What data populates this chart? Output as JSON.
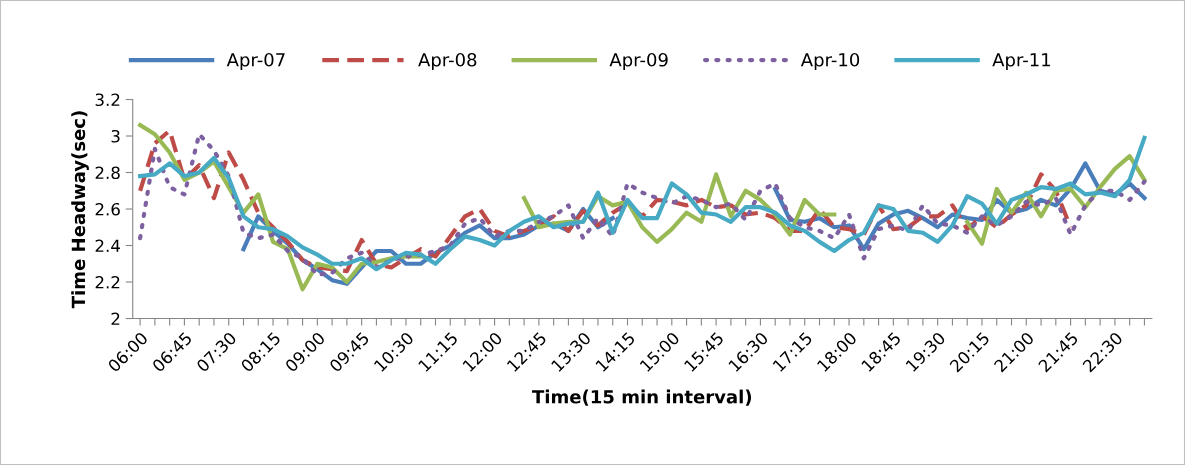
{
  "chart_data": {
    "type": "line",
    "xlabel": "Time(15 min interval)",
    "ylabel": "Time Headway(sec)",
    "categories": [
      "06:00",
      null,
      null,
      "06:45",
      null,
      null,
      "07:30",
      null,
      null,
      "08:15",
      null,
      null,
      "09:00",
      null,
      null,
      "09:45",
      null,
      null,
      "10:30",
      null,
      null,
      "11:15",
      null,
      null,
      "12:00",
      null,
      null,
      "12:45",
      null,
      null,
      "13:30",
      null,
      null,
      "14:15",
      null,
      null,
      "15:00",
      null,
      null,
      "15:45",
      null,
      null,
      "16:30",
      null,
      null,
      "17:15",
      null,
      null,
      "18:00",
      null,
      null,
      "18:45",
      null,
      null,
      "19:30",
      null,
      null,
      "20:15",
      null,
      null,
      "21:00",
      null,
      null,
      "21:45",
      null,
      null,
      "22:30",
      null,
      null
    ],
    "series": [
      {
        "name": "Apr-07",
        "color": "#4a7ebb",
        "line_style": "solid",
        "values": [
          null,
          null,
          null,
          null,
          null,
          null,
          null,
          2.38,
          2.56,
          2.48,
          2.41,
          2.32,
          2.27,
          2.21,
          2.19,
          2.28,
          2.37,
          2.37,
          2.3,
          2.3,
          2.36,
          2.4,
          2.47,
          2.51,
          2.44,
          2.44,
          2.46,
          2.51,
          2.52,
          2.48,
          2.6,
          2.5,
          2.55,
          null,
          null,
          null,
          null,
          null,
          null,
          null,
          null,
          null,
          null,
          2.71,
          2.54,
          2.53,
          2.55,
          2.5,
          2.51,
          2.38,
          2.52,
          2.57,
          2.59,
          2.55,
          2.5,
          2.57,
          2.55,
          2.54,
          2.65,
          2.58,
          2.6,
          2.65,
          2.62,
          2.71,
          2.85,
          2.7,
          2.68,
          2.74,
          2.66
        ]
      },
      {
        "name": "Apr-08",
        "color": "#be4b48",
        "line_style": "dashed",
        "values": [
          2.7,
          2.96,
          3.03,
          2.76,
          2.84,
          2.66,
          2.91,
          2.76,
          2.58,
          2.5,
          2.42,
          2.32,
          2.28,
          2.27,
          2.26,
          2.43,
          2.3,
          2.28,
          2.33,
          2.38,
          2.34,
          2.45,
          2.56,
          2.6,
          2.48,
          2.45,
          2.48,
          2.51,
          2.56,
          2.48,
          2.59,
          2.51,
          2.58,
          2.63,
          2.56,
          2.65,
          2.64,
          2.62,
          2.65,
          2.61,
          2.62,
          2.57,
          2.58,
          2.55,
          2.48,
          2.48,
          2.6,
          2.5,
          2.49,
          2.46,
          2.62,
          2.49,
          2.5,
          2.56,
          2.56,
          2.62,
          2.49,
          2.56,
          2.5,
          2.57,
          2.62,
          2.79,
          2.7,
          2.5,
          null,
          null,
          null,
          null,
          null
        ]
      },
      {
        "name": "Apr-09",
        "color": "#98b954",
        "line_style": "solid",
        "values": [
          3.06,
          3.01,
          2.91,
          2.76,
          2.8,
          2.86,
          2.72,
          2.58,
          2.68,
          2.42,
          2.38,
          2.16,
          2.3,
          2.28,
          2.2,
          2.3,
          2.31,
          2.33,
          2.34,
          2.34,
          null,
          null,
          null,
          null,
          null,
          null,
          2.66,
          2.5,
          2.52,
          2.53,
          2.53,
          2.67,
          2.62,
          2.64,
          2.5,
          2.42,
          2.49,
          2.58,
          2.53,
          2.79,
          2.56,
          2.7,
          2.65,
          2.57,
          2.46,
          2.65,
          2.57,
          2.57,
          null,
          null,
          null,
          null,
          null,
          null,
          null,
          null,
          2.53,
          2.41,
          2.71,
          2.58,
          2.69,
          2.56,
          2.7,
          2.71,
          2.61,
          2.72,
          2.82,
          2.89,
          2.76
        ]
      },
      {
        "name": "Apr-10",
        "color": "#7d60a0",
        "line_style": "dotted",
        "values": [
          2.44,
          2.93,
          2.72,
          2.68,
          3.01,
          2.92,
          2.78,
          2.47,
          2.44,
          2.46,
          2.37,
          2.33,
          2.24,
          2.25,
          2.33,
          2.36,
          2.28,
          2.32,
          2.34,
          2.35,
          2.37,
          2.4,
          2.52,
          2.55,
          2.45,
          2.48,
          2.48,
          2.53,
          2.56,
          2.62,
          2.44,
          2.55,
          2.45,
          2.74,
          2.69,
          2.66,
          2.63,
          2.67,
          2.65,
          2.61,
          2.63,
          2.54,
          2.7,
          2.74,
          2.55,
          2.5,
          2.48,
          2.44,
          2.57,
          2.33,
          2.49,
          2.51,
          2.48,
          2.62,
          2.52,
          2.51,
          2.47,
          2.56,
          2.51,
          2.56,
          2.64,
          2.62,
          2.66,
          2.46,
          2.62,
          2.7,
          2.7,
          2.65,
          2.75
        ]
      },
      {
        "name": "Apr-11",
        "color": "#46aac5",
        "line_style": "solid",
        "values": [
          2.78,
          2.79,
          2.85,
          2.78,
          2.8,
          2.88,
          2.77,
          2.56,
          2.5,
          2.49,
          2.45,
          2.39,
          2.35,
          2.3,
          2.3,
          2.33,
          2.27,
          2.32,
          2.36,
          2.35,
          2.3,
          2.38,
          2.45,
          2.43,
          2.4,
          2.48,
          2.53,
          2.56,
          2.5,
          2.52,
          2.53,
          2.69,
          2.47,
          2.65,
          2.55,
          2.55,
          2.74,
          2.68,
          2.58,
          2.57,
          2.53,
          2.61,
          2.61,
          2.58,
          2.51,
          2.48,
          2.42,
          2.37,
          2.43,
          2.47,
          2.62,
          2.6,
          2.48,
          2.47,
          2.42,
          2.51,
          2.67,
          2.63,
          2.52,
          2.65,
          2.68,
          2.72,
          2.71,
          2.74,
          2.68,
          2.69,
          2.67,
          2.76,
          2.99
        ]
      }
    ],
    "ylim": [
      2,
      3.2
    ],
    "yticks": [
      2,
      2.2,
      2.4,
      2.6,
      2.8,
      3,
      3.2
    ],
    "grid": false,
    "legend": "top",
    "marker": "none"
  }
}
